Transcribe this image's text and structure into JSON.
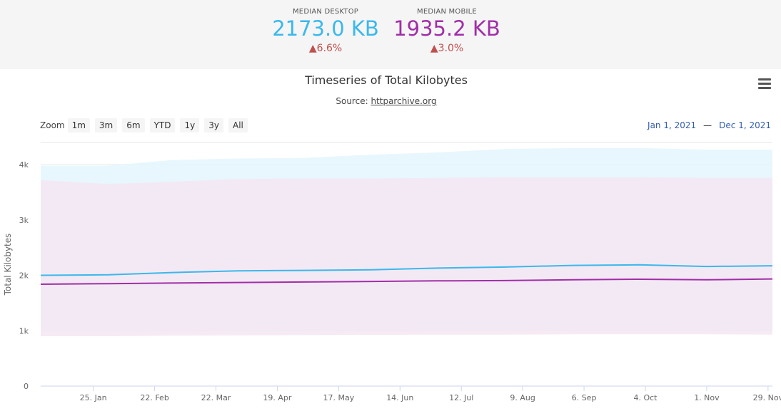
{
  "summary": {
    "desktop": {
      "label": "MEDIAN DESKTOP",
      "value": "2173.0 KB",
      "change": "▲6.6%",
      "color": "#3ab8ec"
    },
    "mobile": {
      "label": "MEDIAN MOBILE",
      "value": "1935.2 KB",
      "change": "▲3.0%",
      "color": "#a12ea8"
    }
  },
  "chart": {
    "title": "Timeseries of Total Kilobytes",
    "source_prefix": "Source: ",
    "source_link": "httparchive.org",
    "zoom_label": "Zoom",
    "zoom_buttons": [
      "1m",
      "3m",
      "6m",
      "YTD",
      "1y",
      "3y",
      "All"
    ],
    "range_from": "Jan 1, 2021",
    "range_to": "Dec 1, 2021",
    "range_sep": "—",
    "menu_icon": "hamburger-menu-icon"
  },
  "chart_data": {
    "type": "area",
    "ylabel": "Total Kilobytes",
    "ylim": [
      0,
      4400
    ],
    "yticks": [
      0,
      1000,
      2000,
      3000,
      4000
    ],
    "ytick_labels": [
      "0",
      "1k",
      "2k",
      "3k",
      "4k"
    ],
    "xlim": [
      "2021-01-01",
      "2021-12-01"
    ],
    "xticks": [
      "2021-01-25",
      "2021-02-22",
      "2021-03-22",
      "2021-04-19",
      "2021-05-17",
      "2021-06-14",
      "2021-07-12",
      "2021-08-09",
      "2021-09-06",
      "2021-10-04",
      "2021-11-01",
      "2021-11-29"
    ],
    "xtick_labels": [
      "25. Jan",
      "22. Feb",
      "22. Mar",
      "19. Apr",
      "17. May",
      "14. Jun",
      "12. Jul",
      "9. Aug",
      "6. Sep",
      "4. Oct",
      "1. Nov",
      "29. Nov"
    ],
    "grid": true,
    "x": [
      "2021-01-01",
      "2021-02-01",
      "2021-03-01",
      "2021-04-01",
      "2021-05-01",
      "2021-06-01",
      "2021-07-01",
      "2021-08-01",
      "2021-09-01",
      "2021-10-01",
      "2021-11-01",
      "2021-12-01"
    ],
    "series": [
      {
        "color": "#3ab8ec",
        "fill": "#e3f6fd",
        "values": [
          2000,
          2010,
          2050,
          2080,
          2090,
          2100,
          2130,
          2150,
          2180,
          2190,
          2160,
          2173
        ],
        "low": [
          990,
          980,
          985,
          990,
          1000,
          1000,
          1005,
          1010,
          1010,
          1005,
          1000,
          1000
        ],
        "high": [
          3980,
          3980,
          4080,
          4110,
          4120,
          4180,
          4220,
          4280,
          4300,
          4300,
          4270,
          4270
        ]
      },
      {
        "color": "#a12ea8",
        "fill": "#f5e6f2",
        "values": [
          1840,
          1850,
          1860,
          1870,
          1880,
          1890,
          1900,
          1905,
          1920,
          1930,
          1920,
          1935
        ],
        "low": [
          900,
          900,
          910,
          915,
          920,
          925,
          930,
          930,
          935,
          935,
          935,
          930
        ],
        "high": [
          3720,
          3650,
          3690,
          3740,
          3750,
          3750,
          3760,
          3770,
          3770,
          3770,
          3760,
          3760
        ]
      }
    ]
  }
}
